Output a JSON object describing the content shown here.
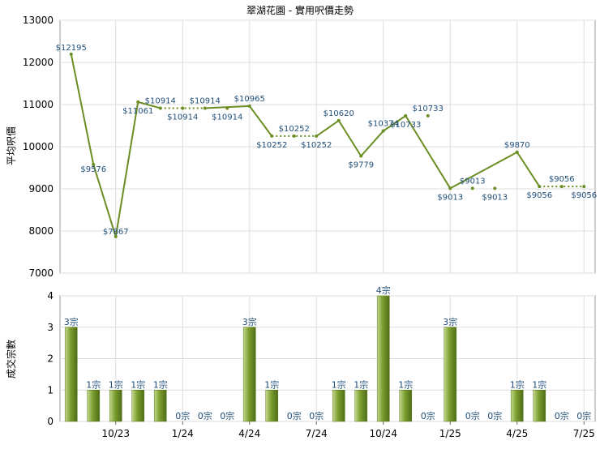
{
  "chart_data": [
    {
      "type": "line",
      "title": "翠湖花園 - 實用呎價走勢",
      "ylabel": "平均呎價",
      "ylim": [
        7000,
        13000
      ],
      "yticks": [
        7000,
        8000,
        9000,
        10000,
        11000,
        12000,
        13000
      ],
      "grid": true,
      "line_color": "#6b8e23",
      "label_color": "#1f4e79",
      "points": [
        {
          "i": 0,
          "y": 12195,
          "label": "$12195"
        },
        {
          "i": 1,
          "y": 9576,
          "label": "$9576"
        },
        {
          "i": 2,
          "y": 7867,
          "label": "$7867"
        },
        {
          "i": 3,
          "y": 11061,
          "label": "$11061"
        },
        {
          "i": 4,
          "y": 10914,
          "label": "$10914"
        },
        {
          "i": 6,
          "y": 10914,
          "label": "$10914"
        },
        {
          "i": 8,
          "y": 10965,
          "label": "$10965"
        },
        {
          "i": 9,
          "y": 10252,
          "label": "$10252"
        },
        {
          "i": 11,
          "y": 10252,
          "label": "$10252"
        },
        {
          "i": 12,
          "y": 10620,
          "label": "$10620"
        },
        {
          "i": 13,
          "y": 9779,
          "label": "$9779"
        },
        {
          "i": 14,
          "y": 10374,
          "label": "$10374"
        },
        {
          "i": 15,
          "y": 10733,
          "label": "$10733"
        },
        {
          "i": 17,
          "y": 9013,
          "label": "$9013"
        },
        {
          "i": 20,
          "y": 9870,
          "label": "$9870"
        },
        {
          "i": 21,
          "y": 9056,
          "label": "$9056"
        },
        {
          "i": 23,
          "y": 9056,
          "label": "$9056"
        }
      ],
      "carried": [
        {
          "i": 5,
          "y": 10914,
          "label": "$10914"
        },
        {
          "i": 7,
          "y": 10914,
          "label": "$10914"
        },
        {
          "i": 10,
          "y": 10252,
          "label": "$10252"
        },
        {
          "i": 16,
          "y": 10733,
          "label": "$10733"
        },
        {
          "i": 18,
          "y": 9013,
          "label": "$9013"
        },
        {
          "i": 19,
          "y": 9013,
          "label": "$9013"
        },
        {
          "i": 22,
          "y": 9056,
          "label": "$9056"
        }
      ]
    },
    {
      "type": "bar",
      "ylabel": "成交宗數",
      "ylim": [
        0,
        4
      ],
      "yticks": [
        0,
        1,
        2,
        3,
        4
      ],
      "grid": true,
      "bar_color": "#6b8e23",
      "label_color": "#1f4e79",
      "values": [
        3,
        1,
        1,
        1,
        1,
        0,
        0,
        0,
        3,
        1,
        0,
        0,
        1,
        1,
        4,
        1,
        0,
        3,
        0,
        0,
        1,
        1,
        0,
        0
      ],
      "value_labels": [
        "3宗",
        "1宗",
        "1宗",
        "1宗",
        "1宗",
        "0宗",
        "0宗",
        "0宗",
        "3宗",
        "1宗",
        "0宗",
        "0宗",
        "1宗",
        "1宗",
        "4宗",
        "1宗",
        "0宗",
        "3宗",
        "0宗",
        "0宗",
        "1宗",
        "1宗",
        "0宗",
        "0宗"
      ],
      "xtick_labels": [
        {
          "i": 2,
          "label": "10/23"
        },
        {
          "i": 5,
          "label": "1/24"
        },
        {
          "i": 8,
          "label": "4/24"
        },
        {
          "i": 11,
          "label": "7/24"
        },
        {
          "i": 14,
          "label": "10/24"
        },
        {
          "i": 17,
          "label": "1/25"
        },
        {
          "i": 20,
          "label": "4/25"
        },
        {
          "i": 23,
          "label": "7/25"
        }
      ]
    }
  ]
}
